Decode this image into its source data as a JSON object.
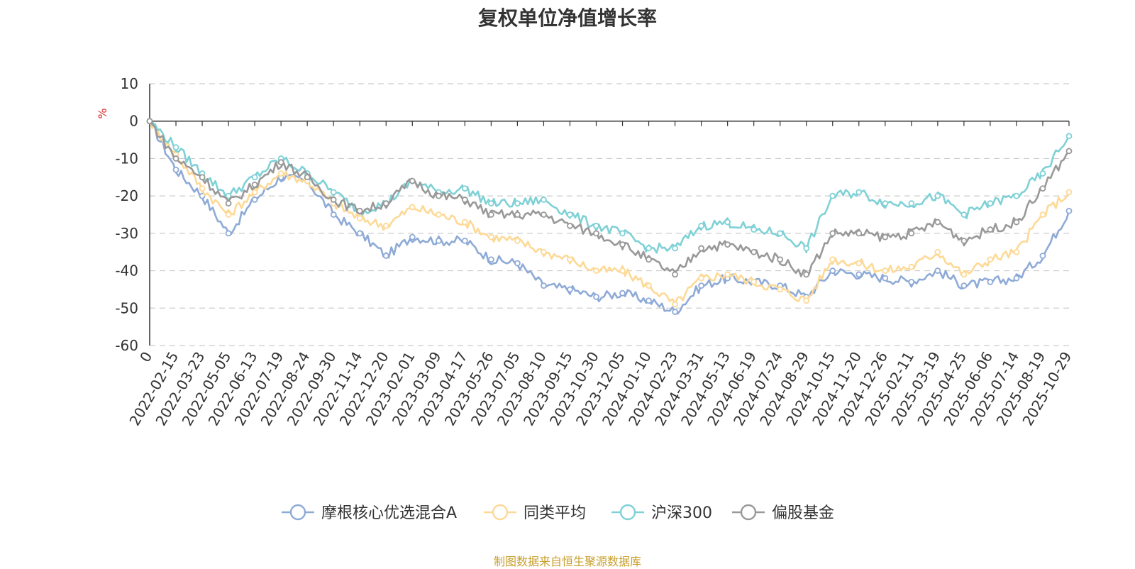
{
  "chart_data": {
    "type": "line",
    "title": "复权单位净值增长率",
    "ylabel": "%",
    "ylim": [
      -60,
      10
    ],
    "yticks": [
      10,
      0,
      -10,
      -20,
      -30,
      -40,
      -50,
      -60
    ],
    "x_labels": [
      "0",
      "2022-02-15",
      "2022-03-23",
      "2022-05-05",
      "2022-06-13",
      "2022-07-19",
      "2022-08-24",
      "2022-09-30",
      "2022-11-14",
      "2022-12-20",
      "2023-02-01",
      "2023-03-09",
      "2023-04-17",
      "2023-05-26",
      "2023-07-05",
      "2023-08-10",
      "2023-09-15",
      "2023-10-30",
      "2023-12-05",
      "2024-01-10",
      "2024-02-23",
      "2024-03-31",
      "2024-05-13",
      "2024-06-19",
      "2024-07-24",
      "2024-08-29",
      "2024-10-15",
      "2024-11-20",
      "2024-12-26",
      "2025-02-11",
      "2025-03-19",
      "2025-04-25",
      "2025-06-06",
      "2025-07-14",
      "2025-08-19",
      "2025-10-29"
    ],
    "series": [
      {
        "name": "摩根核心优选混合A",
        "color": "#8eaad6",
        "values": [
          0,
          -13,
          -20,
          -30,
          -21,
          -15,
          -16,
          -25,
          -30,
          -36,
          -31,
          -32,
          -32,
          -37,
          -38,
          -44,
          -45,
          -47,
          -46,
          -48,
          -51,
          -44,
          -42,
          -43,
          -44,
          -47,
          -40,
          -41,
          -42,
          -43,
          -40,
          -44,
          -43,
          -42,
          -36,
          -24
        ]
      },
      {
        "name": "同类平均",
        "color": "#fdd996",
        "values": [
          0,
          -9,
          -18,
          -25,
          -19,
          -14,
          -16,
          -22,
          -26,
          -28,
          -23,
          -25,
          -27,
          -31,
          -32,
          -35,
          -37,
          -40,
          -40,
          -44,
          -49,
          -42,
          -41,
          -43,
          -45,
          -48,
          -37,
          -38,
          -40,
          -39,
          -35,
          -41,
          -37,
          -35,
          -25,
          -19
        ]
      },
      {
        "name": "沪深300",
        "color": "#7fd1d6",
        "values": [
          0,
          -7,
          -14,
          -20,
          -15,
          -10,
          -14,
          -19,
          -24,
          -22,
          -16,
          -19,
          -18,
          -22,
          -22,
          -21,
          -25,
          -28,
          -30,
          -34,
          -34,
          -28,
          -27,
          -29,
          -30,
          -34,
          -20,
          -19,
          -22,
          -22,
          -20,
          -25,
          -22,
          -20,
          -14,
          -4
        ]
      },
      {
        "name": "偏股基金",
        "color": "#999999",
        "values": [
          0,
          -10,
          -15,
          -22,
          -17,
          -11,
          -15,
          -21,
          -24,
          -22,
          -16,
          -20,
          -21,
          -25,
          -25,
          -25,
          -28,
          -30,
          -33,
          -37,
          -41,
          -34,
          -33,
          -35,
          -37,
          -41,
          -30,
          -30,
          -31,
          -30,
          -27,
          -32,
          -29,
          -27,
          -18,
          -8
        ]
      }
    ]
  },
  "source": "制图数据来自恒生聚源数据库"
}
